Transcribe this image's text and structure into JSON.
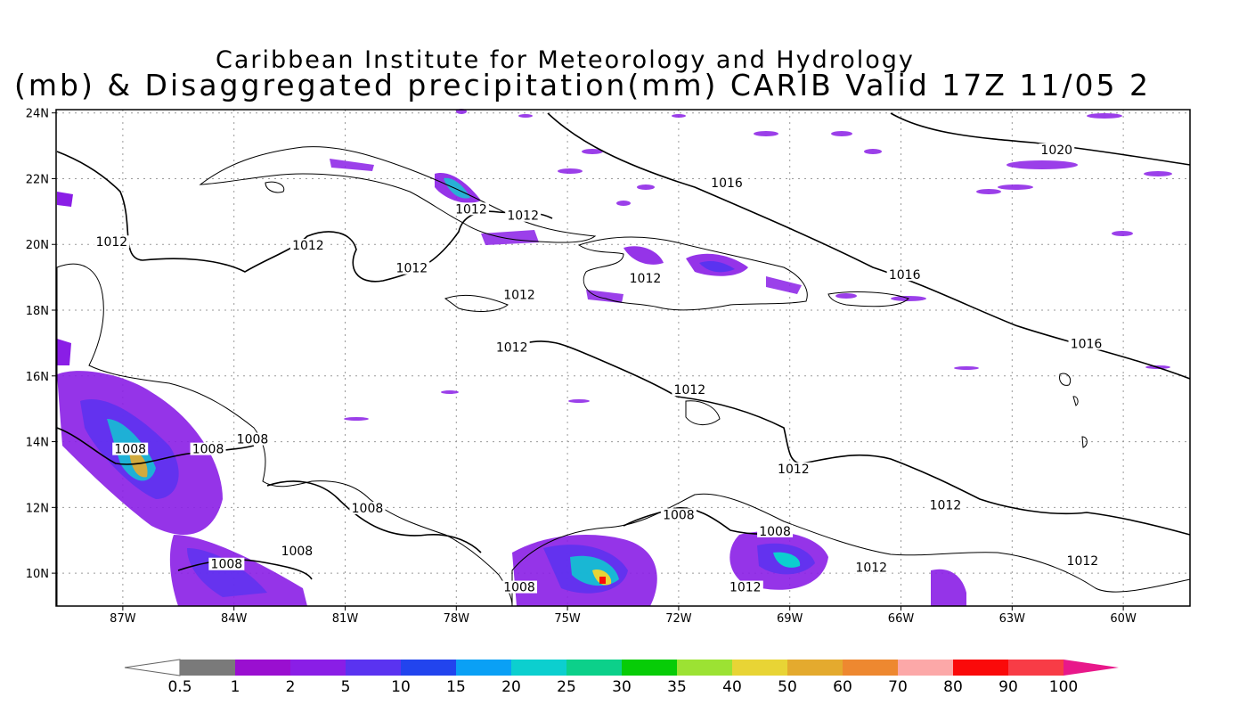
{
  "header": {
    "title_line1": "Caribbean Institute for Meteorology and Hydrology",
    "title_line2": "(mb) & Disaggregated precipitation(mm) CARIB Valid 17Z 11/05 2"
  },
  "axes": {
    "lon_labels": [
      "87W",
      "84W",
      "81W",
      "78W",
      "75W",
      "72W",
      "69W",
      "66W",
      "63W",
      "60W"
    ],
    "lon_values": [
      -87,
      -84,
      -81,
      -78,
      -75,
      -72,
      -69,
      -66,
      -63,
      -60
    ],
    "lat_labels": [
      "24N",
      "22N",
      "20N",
      "18N",
      "16N",
      "14N",
      "12N",
      "10N"
    ],
    "lat_values": [
      24,
      22,
      20,
      18,
      16,
      14,
      12,
      10
    ],
    "lon_range": [
      -88.8,
      -58.2
    ],
    "lat_range": [
      9.0,
      24.1
    ],
    "grid": true
  },
  "isobars": [
    {
      "text": "1020",
      "lon": -61.8,
      "lat": 22.8
    },
    {
      "text": "1016",
      "lon": -70.7,
      "lat": 21.8
    },
    {
      "text": "1016",
      "lon": -65.9,
      "lat": 19.0
    },
    {
      "text": "1016",
      "lon": -61.0,
      "lat": 16.9
    },
    {
      "text": "1012",
      "lon": -87.3,
      "lat": 20.0
    },
    {
      "text": "1012",
      "lon": -82.0,
      "lat": 19.9
    },
    {
      "text": "1012",
      "lon": -79.2,
      "lat": 19.2
    },
    {
      "text": "1012",
      "lon": -76.2,
      "lat": 20.8
    },
    {
      "text": "1012",
      "lon": -76.3,
      "lat": 18.4
    },
    {
      "text": "1012",
      "lon": -76.5,
      "lat": 16.8
    },
    {
      "text": "1012",
      "lon": -72.9,
      "lat": 18.9
    },
    {
      "text": "1012",
      "lon": -71.7,
      "lat": 15.5
    },
    {
      "text": "1012",
      "lon": -68.9,
      "lat": 13.1
    },
    {
      "text": "1012",
      "lon": -64.8,
      "lat": 12.0
    },
    {
      "text": "1012",
      "lon": -66.8,
      "lat": 10.1
    },
    {
      "text": "1012",
      "lon": -70.2,
      "lat": 9.5
    },
    {
      "text": "1012",
      "lon": -61.1,
      "lat": 10.3
    },
    {
      "text": "1008",
      "lon": -86.8,
      "lat": 13.7
    },
    {
      "text": "1008",
      "lon": -84.7,
      "lat": 13.7
    },
    {
      "text": "1008",
      "lon": -83.5,
      "lat": 14.0
    },
    {
      "text": "1008",
      "lon": -80.4,
      "lat": 11.9
    },
    {
      "text": "1008",
      "lon": -84.2,
      "lat": 10.2
    },
    {
      "text": "1008",
      "lon": -82.3,
      "lat": 10.6
    },
    {
      "text": "1008",
      "lon": -72.0,
      "lat": 11.7
    },
    {
      "text": "1008",
      "lon": -69.4,
      "lat": 11.2
    },
    {
      "text": "1008",
      "lon": -76.3,
      "lat": 9.5
    },
    {
      "text": "1012",
      "lon": -77.6,
      "lat": 21.0
    }
  ],
  "colorbar": {
    "labels": [
      "0.5",
      "1",
      "2",
      "5",
      "10",
      "15",
      "20",
      "25",
      "30",
      "35",
      "40",
      "50",
      "60",
      "70",
      "80",
      "90",
      "100"
    ],
    "colors": [
      "#7a7a7a",
      "#9a0fd0",
      "#8a1ee6",
      "#5a33f0",
      "#2244ee",
      "#0aa0f5",
      "#0ccfcf",
      "#0cd08a",
      "#07cc07",
      "#9ce233",
      "#e8d435",
      "#e4aa2e",
      "#ee8830",
      "#fca8a8",
      "#fa0a0a",
      "#f83c46"
    ],
    "arrow_left_color": "#ffffff",
    "arrow_right_color": "#e8188a"
  }
}
